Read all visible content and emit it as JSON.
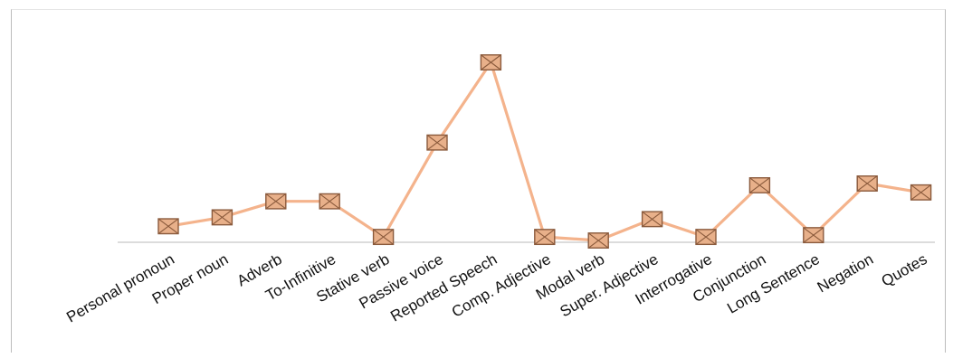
{
  "chart_data": {
    "type": "line",
    "title": "",
    "xlabel": "",
    "ylabel": "",
    "categories": [
      "Personal pronoun",
      "Proper noun",
      "Adverb",
      "To-Infinitive",
      "Stative verb",
      "Passive voice",
      "Reported Speech",
      "Comp. Adjective",
      "Modal verb",
      "Super. Adjective",
      "Interrogative",
      "Conjunction",
      "Long Sentence",
      "Negation",
      "Quotes"
    ],
    "series": [
      {
        "values": [
          9,
          14,
          23,
          23,
          3,
          56,
          101,
          3,
          1,
          13,
          3,
          32,
          4,
          33,
          28
        ]
      }
    ],
    "ylim": [
      0,
      105
    ],
    "grid": false,
    "legend": "none",
    "colors": {
      "line": "#f4b38c",
      "marker_fill": "#e8b08a",
      "marker_edge": "#8a5a3c",
      "axis": "#c8c8c8"
    }
  }
}
